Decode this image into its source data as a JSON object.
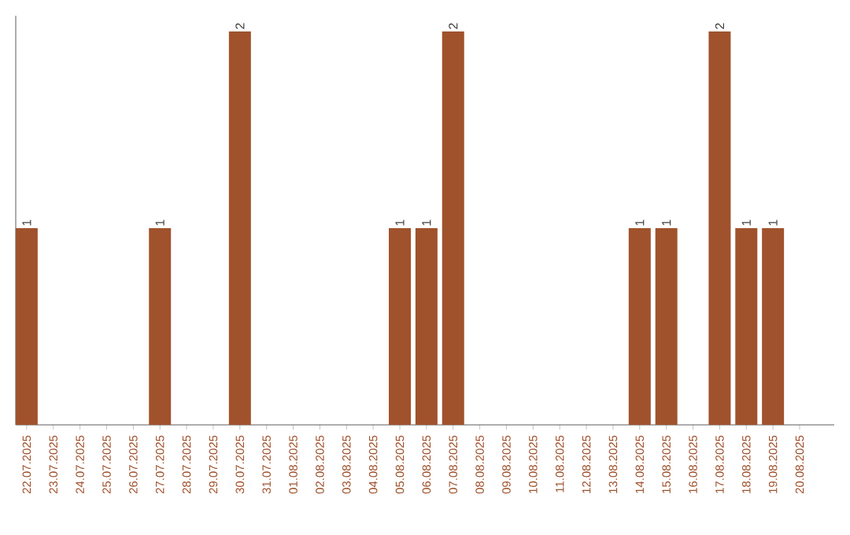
{
  "chart_data": {
    "type": "bar",
    "categories": [
      "22.07.2025",
      "23.07.2025",
      "24.07.2025",
      "25.07.2025",
      "26.07.2025",
      "27.07.2025",
      "28.07.2025",
      "29.07.2025",
      "30.07.2025",
      "31.07.2025",
      "01.08.2025",
      "02.08.2025",
      "03.08.2025",
      "04.08.2025",
      "05.08.2025",
      "06.08.2025",
      "07.08.2025",
      "08.08.2025",
      "09.08.2025",
      "10.08.2025",
      "11.08.2025",
      "12.08.2025",
      "13.08.2025",
      "14.08.2025",
      "15.08.2025",
      "16.08.2025",
      "17.08.2025",
      "18.08.2025",
      "19.08.2025",
      "20.08.2025"
    ],
    "values": [
      1,
      0,
      0,
      0,
      0,
      1,
      0,
      0,
      2,
      0,
      0,
      0,
      0,
      0,
      1,
      1,
      2,
      0,
      0,
      0,
      0,
      0,
      0,
      1,
      1,
      0,
      2,
      1,
      1,
      0
    ],
    "value_labels": [
      "1",
      null,
      null,
      null,
      null,
      "1",
      null,
      null,
      "2",
      null,
      null,
      null,
      null,
      null,
      "1",
      "1",
      "2",
      null,
      null,
      null,
      null,
      null,
      null,
      "1",
      "1",
      null,
      "2",
      "1",
      "1",
      null
    ],
    "color": "#a0522d"
  }
}
